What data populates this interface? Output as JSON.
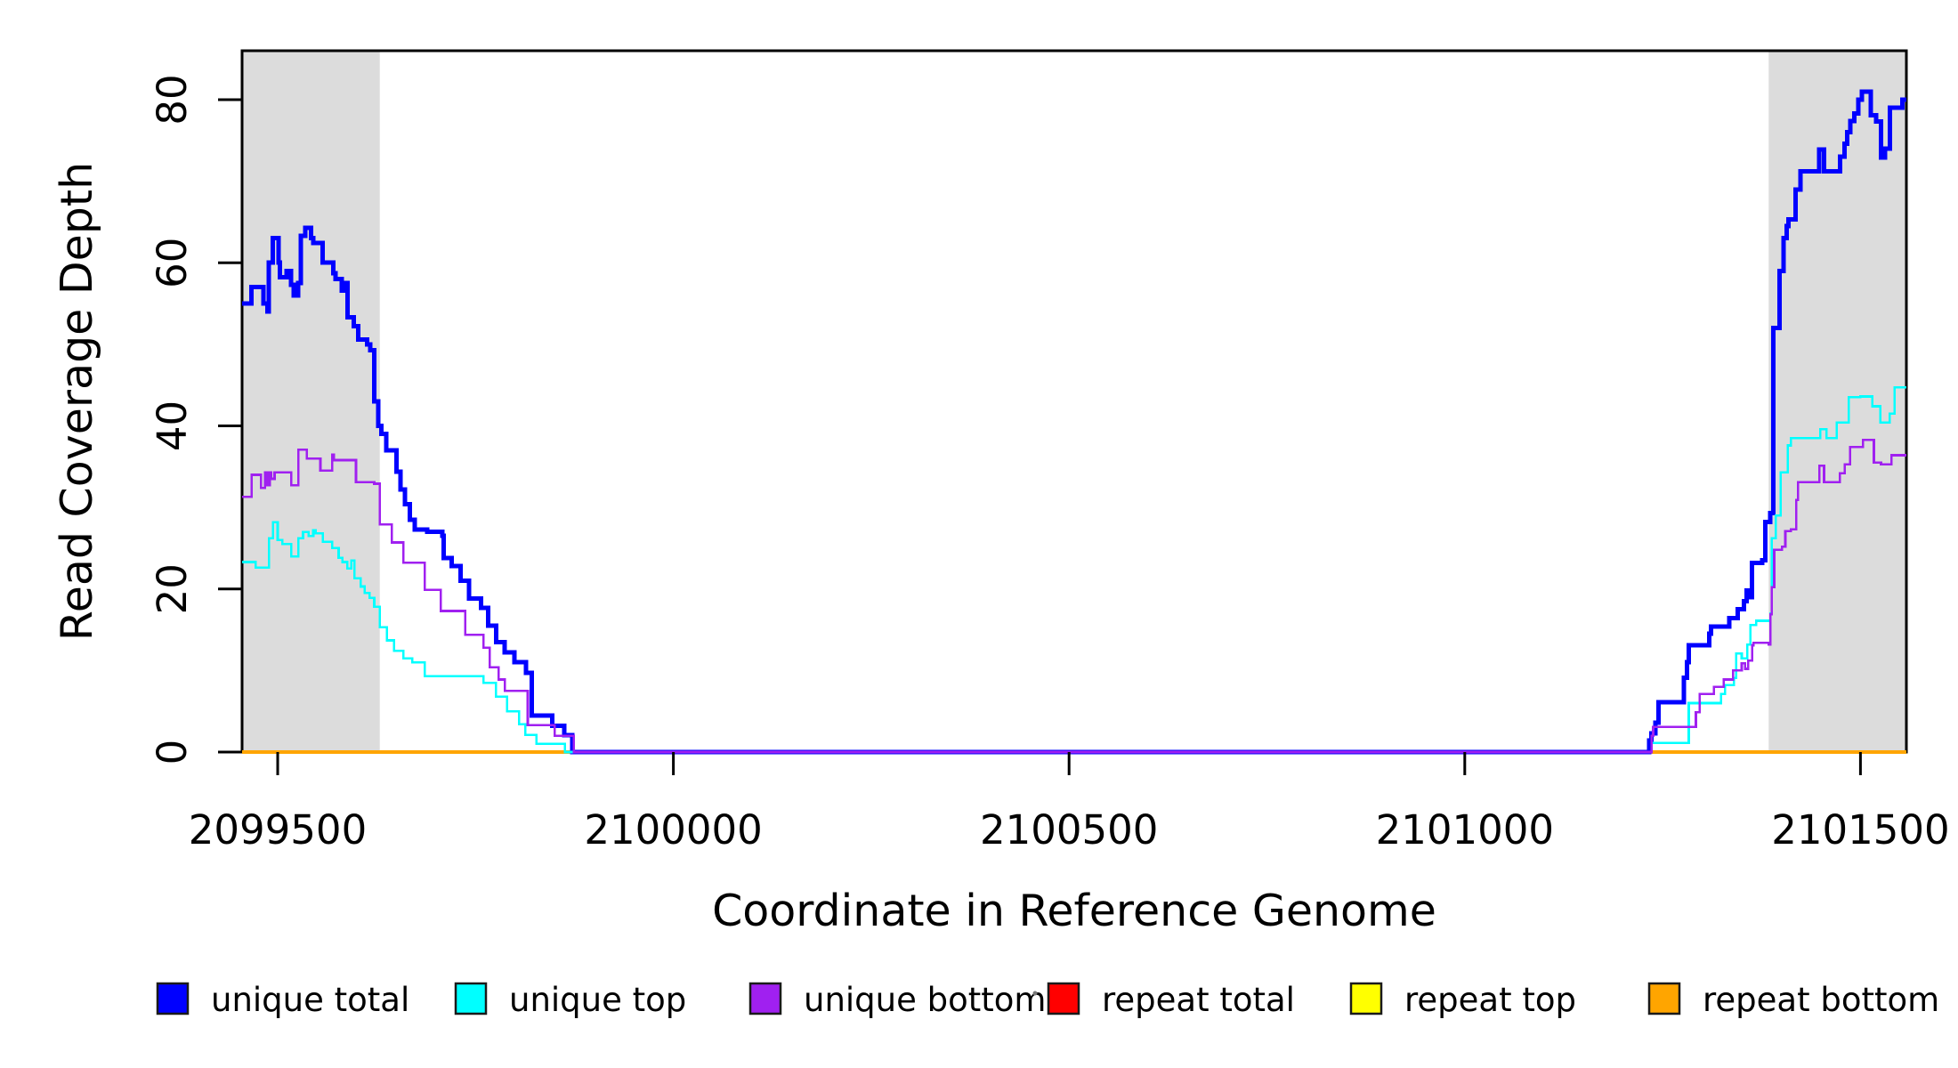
{
  "figure": {
    "background": "#FFFFFF",
    "plot_border_color": "#000000"
  },
  "chart_data": {
    "type": "line",
    "subtype": "step",
    "title": "",
    "xlabel": "Coordinate in Reference Genome",
    "ylabel": "Read Coverage Depth",
    "xlim": [
      2099455,
      2101558
    ],
    "ylim": [
      0,
      86
    ],
    "x_ticks": [
      2099500,
      2100000,
      2100500,
      2101000,
      2101500
    ],
    "y_ticks": [
      0,
      20,
      40,
      60,
      80
    ],
    "grid": false,
    "legend_position": "bottom",
    "shaded_regions": [
      {
        "x_start": 2099455,
        "x_end": 2099629,
        "color": "#DCDCDC"
      },
      {
        "x_start": 2101384,
        "x_end": 2101558,
        "color": "#DCDCDC"
      }
    ],
    "series": [
      {
        "name": "repeat total",
        "color": "#FF0000",
        "line_width": 3,
        "points": [
          [
            2099455,
            0
          ],
          [
            2101558,
            0
          ]
        ]
      },
      {
        "name": "repeat top",
        "color": "#FFFF00",
        "line_width": 3,
        "points": [
          [
            2099455,
            0
          ],
          [
            2101558,
            0
          ]
        ]
      },
      {
        "name": "repeat bottom",
        "color": "#FFA500",
        "line_width": 4,
        "points": [
          [
            2099455,
            0
          ],
          [
            2101558,
            0
          ]
        ]
      },
      {
        "name": "unique total",
        "color": "#0000FF",
        "line_width": 5,
        "points": [
          [
            2099455,
            55
          ],
          [
            2099467,
            57
          ],
          [
            2099482,
            55
          ],
          [
            2099487,
            54
          ],
          [
            2099489,
            60
          ],
          [
            2099494,
            63
          ],
          [
            2099501,
            60
          ],
          [
            2099503,
            58.2
          ],
          [
            2099511,
            59
          ],
          [
            2099517,
            57.3
          ],
          [
            2099520,
            56
          ],
          [
            2099526,
            57.5
          ],
          [
            2099529,
            63.3
          ],
          [
            2099535,
            64.3
          ],
          [
            2099542,
            63
          ],
          [
            2099545,
            62.4
          ],
          [
            2099557,
            60
          ],
          [
            2099570,
            58.7
          ],
          [
            2099573,
            58
          ],
          [
            2099581,
            56.6
          ],
          [
            2099584,
            57.5
          ],
          [
            2099588,
            53.3
          ],
          [
            2099596,
            52.2
          ],
          [
            2099602,
            50.6
          ],
          [
            2099613,
            50
          ],
          [
            2099617,
            49.3
          ],
          [
            2099622,
            43
          ],
          [
            2099627,
            40
          ],
          [
            2099631,
            39
          ],
          [
            2099637,
            37
          ],
          [
            2099650,
            34.4
          ],
          [
            2099655,
            32.2
          ],
          [
            2099661,
            30.4
          ],
          [
            2099667,
            28.5
          ],
          [
            2099673,
            27.3
          ],
          [
            2099689,
            27
          ],
          [
            2099708,
            26.5
          ],
          [
            2099710,
            23.8
          ],
          [
            2099720,
            22.8
          ],
          [
            2099731,
            21
          ],
          [
            2099742,
            18.8
          ],
          [
            2099757,
            17.7
          ],
          [
            2099766,
            15.5
          ],
          [
            2099776,
            13.5
          ],
          [
            2099787,
            12.2
          ],
          [
            2099799,
            11
          ],
          [
            2099814,
            9.7
          ],
          [
            2099821,
            4.5
          ],
          [
            2099847,
            3.2
          ],
          [
            2099862,
            2.1
          ],
          [
            2099872,
            0
          ],
          [
            2101233,
            1.4
          ],
          [
            2101236,
            2.3
          ],
          [
            2101241,
            3.6
          ],
          [
            2101245,
            6.1
          ],
          [
            2101277,
            9.1
          ],
          [
            2101281,
            11
          ],
          [
            2101283,
            13.1
          ],
          [
            2101309,
            14.5
          ],
          [
            2101311,
            15.4
          ],
          [
            2101334,
            16.4
          ],
          [
            2101345,
            17.5
          ],
          [
            2101353,
            18.5
          ],
          [
            2101356,
            19.8
          ],
          [
            2101360,
            19
          ],
          [
            2101363,
            23.2
          ],
          [
            2101376,
            23.5
          ],
          [
            2101380,
            28.2
          ],
          [
            2101386,
            29.3
          ],
          [
            2101390,
            52
          ],
          [
            2101398,
            59
          ],
          [
            2101403,
            63
          ],
          [
            2101407,
            64.5
          ],
          [
            2101409,
            65.3
          ],
          [
            2101418,
            69
          ],
          [
            2101424,
            71.2
          ],
          [
            2101448,
            73.9
          ],
          [
            2101454,
            71.2
          ],
          [
            2101474,
            73
          ],
          [
            2101480,
            74.6
          ],
          [
            2101483,
            76
          ],
          [
            2101487,
            77.4
          ],
          [
            2101492,
            78.3
          ],
          [
            2101497,
            80
          ],
          [
            2101502,
            81
          ],
          [
            2101513,
            78.1
          ],
          [
            2101520,
            77.3
          ],
          [
            2101526,
            72.9
          ],
          [
            2101531,
            74
          ],
          [
            2101537,
            79
          ],
          [
            2101553,
            80
          ],
          [
            2101558,
            80
          ]
        ]
      },
      {
        "name": "unique top",
        "color": "#00FFFF",
        "line_width": 2.6,
        "points": [
          [
            2099455,
            23.3
          ],
          [
            2099472,
            22.6
          ],
          [
            2099489,
            26.2
          ],
          [
            2099494,
            28.2
          ],
          [
            2099500,
            26
          ],
          [
            2099506,
            25.5
          ],
          [
            2099517,
            24
          ],
          [
            2099526,
            26.2
          ],
          [
            2099532,
            27
          ],
          [
            2099539,
            26.5
          ],
          [
            2099545,
            27.2
          ],
          [
            2099548,
            26.8
          ],
          [
            2099557,
            25.8
          ],
          [
            2099569,
            25
          ],
          [
            2099577,
            23.8
          ],
          [
            2099582,
            23.3
          ],
          [
            2099588,
            22.5
          ],
          [
            2099593,
            23.5
          ],
          [
            2099597,
            21.3
          ],
          [
            2099605,
            20.3
          ],
          [
            2099610,
            19.5
          ],
          [
            2099616,
            18.9
          ],
          [
            2099622,
            17.8
          ],
          [
            2099629,
            15.3
          ],
          [
            2099638,
            13.7
          ],
          [
            2099647,
            12.4
          ],
          [
            2099659,
            11.5
          ],
          [
            2099670,
            11
          ],
          [
            2099686,
            9.3
          ],
          [
            2099760,
            8.5
          ],
          [
            2099776,
            6.8
          ],
          [
            2099790,
            5
          ],
          [
            2099805,
            3.4
          ],
          [
            2099813,
            2.1
          ],
          [
            2099827,
            1
          ],
          [
            2099863,
            0
          ],
          [
            2101236,
            1.1
          ],
          [
            2101283,
            6
          ],
          [
            2101324,
            7.1
          ],
          [
            2101329,
            8.2
          ],
          [
            2101340,
            9.1
          ],
          [
            2101343,
            12.1
          ],
          [
            2101350,
            11.5
          ],
          [
            2101357,
            13.2
          ],
          [
            2101361,
            15.6
          ],
          [
            2101368,
            16.1
          ],
          [
            2101386,
            17
          ],
          [
            2101388,
            26.2
          ],
          [
            2101393,
            29
          ],
          [
            2101399,
            34.3
          ],
          [
            2101408,
            37.6
          ],
          [
            2101412,
            38.5
          ],
          [
            2101449,
            39.6
          ],
          [
            2101457,
            38.5
          ],
          [
            2101470,
            40.4
          ],
          [
            2101485,
            43.5
          ],
          [
            2101500,
            43.6
          ],
          [
            2101515,
            42.4
          ],
          [
            2101525,
            40.4
          ],
          [
            2101537,
            41.5
          ],
          [
            2101543,
            44.7
          ],
          [
            2101558,
            44.7
          ]
        ]
      },
      {
        "name": "unique bottom",
        "color": "#A020F0",
        "line_width": 2.6,
        "points": [
          [
            2099455,
            31.3
          ],
          [
            2099467,
            34
          ],
          [
            2099479,
            32.4
          ],
          [
            2099484,
            34.3
          ],
          [
            2099487,
            32.7
          ],
          [
            2099490,
            34.3
          ],
          [
            2099492,
            33.5
          ],
          [
            2099496,
            34.3
          ],
          [
            2099517,
            32.7
          ],
          [
            2099526,
            37.1
          ],
          [
            2099537,
            36
          ],
          [
            2099554,
            34.5
          ],
          [
            2099569,
            36.5
          ],
          [
            2099571,
            35.8
          ],
          [
            2099588,
            35.8
          ],
          [
            2099599,
            33.1
          ],
          [
            2099622,
            32.9
          ],
          [
            2099629,
            27.9
          ],
          [
            2099644,
            25.7
          ],
          [
            2099659,
            23.2
          ],
          [
            2099686,
            19.9
          ],
          [
            2099706,
            17.3
          ],
          [
            2099737,
            14.4
          ],
          [
            2099760,
            12.8
          ],
          [
            2099768,
            10.4
          ],
          [
            2099779,
            8.9
          ],
          [
            2099787,
            7.5
          ],
          [
            2099816,
            3.3
          ],
          [
            2099850,
            2
          ],
          [
            2099874,
            0
          ],
          [
            2101236,
            2
          ],
          [
            2101238,
            3.1
          ],
          [
            2101292,
            4.9
          ],
          [
            2101297,
            7.1
          ],
          [
            2101315,
            8
          ],
          [
            2101327,
            8.9
          ],
          [
            2101339,
            10
          ],
          [
            2101350,
            10.9
          ],
          [
            2101354,
            10.2
          ],
          [
            2101358,
            11.2
          ],
          [
            2101363,
            13.1
          ],
          [
            2101365,
            13.4
          ],
          [
            2101384,
            13.2
          ],
          [
            2101386,
            16.9
          ],
          [
            2101388,
            20.2
          ],
          [
            2101391,
            24.8
          ],
          [
            2101401,
            25.2
          ],
          [
            2101405,
            27.1
          ],
          [
            2101412,
            27.3
          ],
          [
            2101419,
            30.9
          ],
          [
            2101421,
            33.1
          ],
          [
            2101448,
            35.1
          ],
          [
            2101454,
            33.1
          ],
          [
            2101474,
            34.2
          ],
          [
            2101480,
            35.3
          ],
          [
            2101487,
            37.4
          ],
          [
            2101503,
            38.3
          ],
          [
            2101517,
            35.5
          ],
          [
            2101526,
            35.3
          ],
          [
            2101539,
            36.4
          ],
          [
            2101558,
            36.4
          ]
        ]
      }
    ],
    "legend": {
      "entries": [
        {
          "label": "unique total",
          "color": "#0000FF"
        },
        {
          "label": "unique top",
          "color": "#00FFFF"
        },
        {
          "label": "unique bottom",
          "color": "#A020F0"
        },
        {
          "label": "repeat total",
          "color": "#FF0000"
        },
        {
          "label": "repeat top",
          "color": "#FFFF00"
        },
        {
          "label": "repeat bottom",
          "color": "#FFA500"
        }
      ]
    }
  }
}
